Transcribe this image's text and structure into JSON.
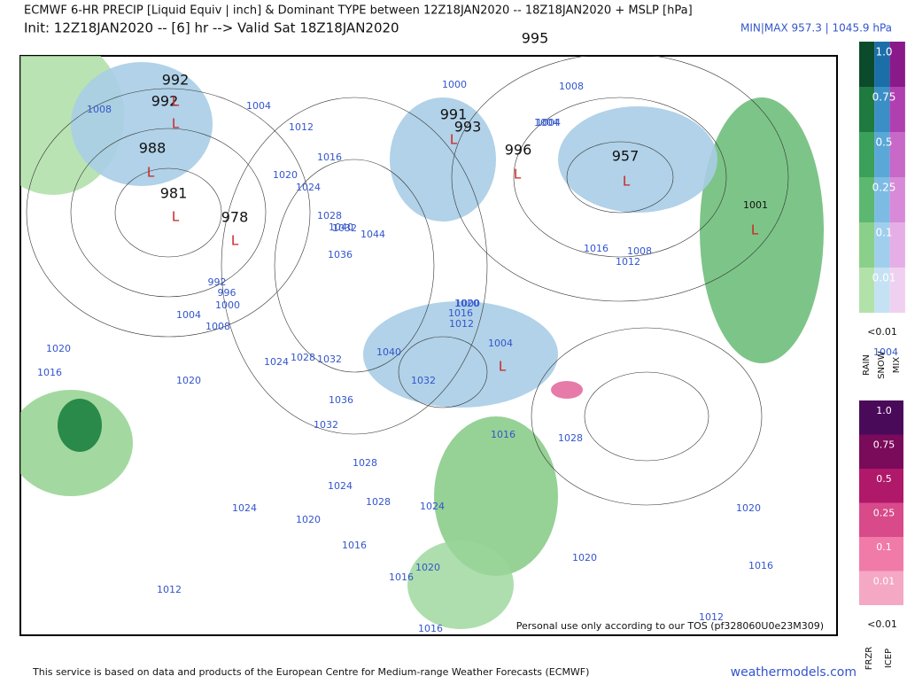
{
  "header": {
    "title": "ECMWF 6-HR PRECIP [Liquid Equiv | inch] & Dominant TYPE between 12Z18JAN2020 -- 18Z18JAN2020 + MSLP [hPa]",
    "subtitle": "Init: 12Z18JAN2020 -- [6] hr --> Valid Sat 18Z18JAN2020",
    "minmax": "MIN|MAX 957.3 | 1045.9 hPa"
  },
  "map": {
    "lows": [
      "995",
      "992",
      "992",
      "988",
      "981",
      "978",
      "991",
      "993",
      "996",
      "957",
      "1001"
    ],
    "low_marker": "L",
    "isobars": [
      "1008",
      "1004",
      "1012",
      "1016",
      "1020",
      "1024",
      "1028",
      "1032",
      "1036",
      "1040",
      "1044",
      "1000",
      "1008",
      "1004",
      "992",
      "996",
      "1000",
      "1004",
      "1008",
      "1020",
      "1016",
      "1020",
      "1024",
      "1028",
      "1032",
      "1036",
      "1032",
      "1040",
      "1032",
      "1024",
      "1020",
      "1016",
      "1000",
      "1004",
      "1012",
      "1016",
      "1020",
      "1024",
      "1028",
      "1024",
      "1020",
      "1016",
      "1012",
      "1016",
      "1020",
      "1016",
      "1028",
      "1004",
      "1008",
      "1012",
      "1016",
      "1028",
      "1020",
      "1016",
      "1012",
      "1004"
    ],
    "tos": "Personal use only according to our TOS (pf328060U0e23M309)"
  },
  "legend": {
    "rain_snow_mix": [
      "1.0",
      "0.75",
      "0.5",
      "0.25",
      "0.1",
      "0.01"
    ],
    "below": "<0.01",
    "columns": [
      "RAIN",
      "SNOW",
      "MIX"
    ],
    "frzr_icep": [
      "1.0",
      "0.75",
      "0.5",
      "0.25",
      "0.1",
      "0.01"
    ],
    "below2": "<0.01",
    "columns2": [
      "FRZR",
      "ICEP"
    ]
  },
  "footer": {
    "note": "This service is based on data and products of the European Centre for Medium-range Weather Forecasts (ECMWF)",
    "brand": "weathermodels.com"
  }
}
